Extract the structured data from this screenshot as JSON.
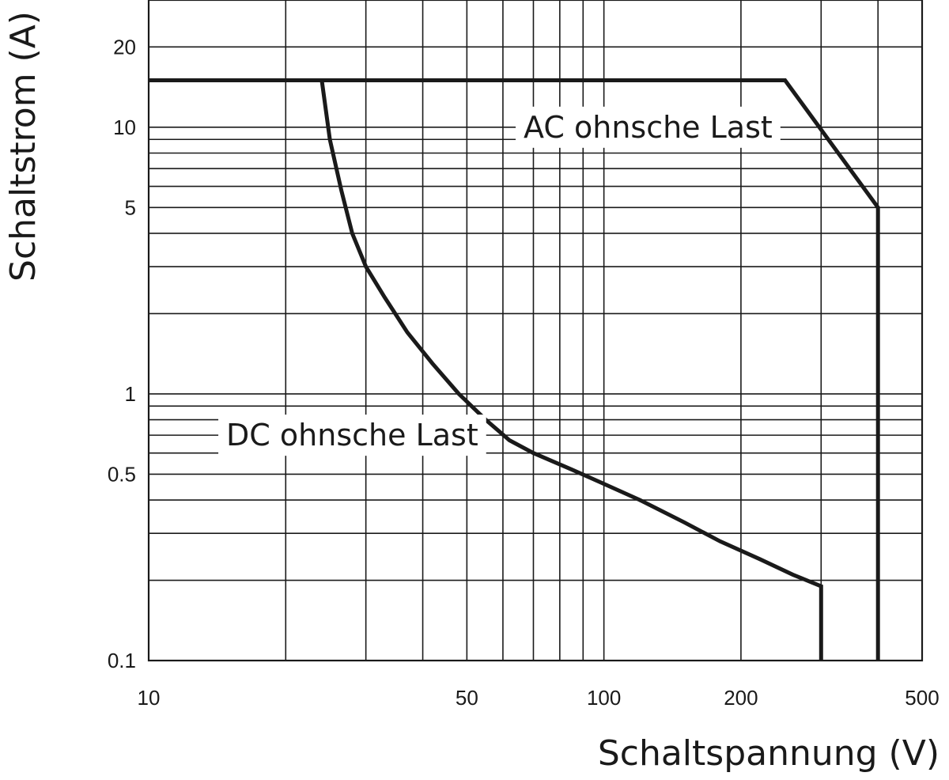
{
  "chart_data": {
    "type": "line",
    "title": "",
    "xlabel": "Schaltspannung (V)",
    "ylabel": "Schaltstrom (A)",
    "x_scale": "log",
    "y_scale": "log",
    "xlim": [
      10,
      500
    ],
    "ylim": [
      0.1,
      30
    ],
    "x_ticks": [
      {
        "value": 10,
        "label": "10"
      },
      {
        "value": 50,
        "label": "50"
      },
      {
        "value": 100,
        "label": "100"
      },
      {
        "value": 200,
        "label": "200"
      },
      {
        "value": 500,
        "label": "500"
      }
    ],
    "y_ticks": [
      {
        "value": 0.1,
        "label": "0.1"
      },
      {
        "value": 0.5,
        "label": "0.5"
      },
      {
        "value": 1,
        "label": "1"
      },
      {
        "value": 5,
        "label": "5"
      },
      {
        "value": 10,
        "label": "10"
      },
      {
        "value": 20,
        "label": "20"
      }
    ],
    "x_gridlines": [
      20,
      30,
      40,
      50,
      60,
      70,
      80,
      90,
      100,
      200,
      300,
      400
    ],
    "y_gridlines": [
      0.2,
      0.3,
      0.4,
      0.5,
      0.6,
      0.7,
      0.8,
      0.9,
      1,
      2,
      3,
      4,
      5,
      6,
      7,
      8,
      9,
      10,
      20
    ],
    "grid": true,
    "series": [
      {
        "name": "AC ohnsche Last",
        "x": [
          10,
          250,
          400,
          400
        ],
        "y": [
          15,
          15,
          5,
          0.1
        ]
      },
      {
        "name": "DC ohnsche Last",
        "x": [
          24,
          25,
          26.5,
          28,
          30,
          33,
          37,
          42,
          48,
          55,
          62,
          70,
          85,
          100,
          120,
          150,
          180,
          220,
          260,
          300,
          300
        ],
        "y": [
          15,
          9,
          5.8,
          4,
          3,
          2.3,
          1.7,
          1.3,
          1,
          0.8,
          0.67,
          0.6,
          0.52,
          0.46,
          0.4,
          0.33,
          0.28,
          0.24,
          0.21,
          0.19,
          0.1
        ]
      }
    ],
    "annotations": [
      {
        "text": "AC ohnsche Last",
        "x": 125,
        "y": 10
      },
      {
        "text": "DC ohnsche Last",
        "x": 28,
        "y": 0.7
      }
    ]
  }
}
